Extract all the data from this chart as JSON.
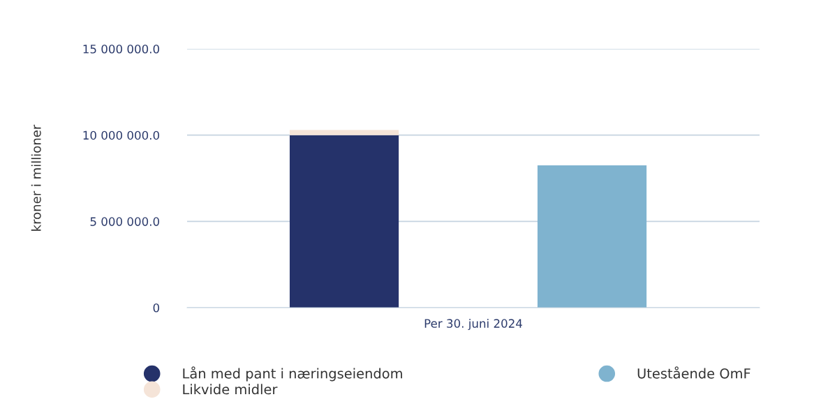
{
  "chart_data": {
    "type": "bar",
    "stacked": true,
    "categories": [
      null,
      null
    ],
    "xlabel": "Per 30. juni 2024",
    "ylabel": "kroner i millioner",
    "series": [
      {
        "name": "Lån med pant i næringseiendom",
        "color": "#25326a",
        "values": [
          10000000,
          null
        ]
      },
      {
        "name": "Likvide midler",
        "color": "#f5e4d8",
        "values": [
          300000,
          null
        ]
      },
      {
        "name": "Utestående OmF",
        "color": "#7fb3cf",
        "values": [
          null,
          8250000
        ]
      }
    ],
    "ylim": [
      0,
      15000000
    ],
    "yticks": [
      0,
      {
        "value": 5000000,
        "label": "5 000 000.0"
      },
      {
        "value": 10000000,
        "label": "10 000 000.0"
      },
      {
        "value": 15000000,
        "label": "15 000 000.0"
      }
    ],
    "grid": "y",
    "legend": "bottom"
  }
}
